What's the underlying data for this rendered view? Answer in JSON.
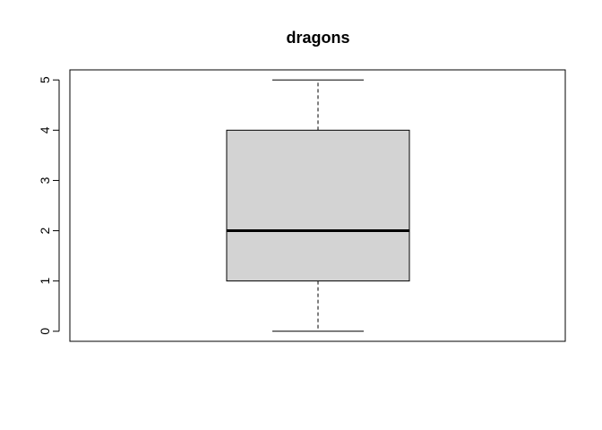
{
  "chart_data": {
    "type": "boxplot",
    "title": "dragons",
    "xlabel": "",
    "ylabel": "",
    "ylim": [
      -0.2,
      5.2
    ],
    "yticks": [
      "0",
      "1",
      "2",
      "3",
      "4",
      "5"
    ],
    "box": {
      "whisker_low": 0,
      "q1": 1,
      "median": 2,
      "q3": 4,
      "whisker_high": 5
    },
    "colors": {
      "box_fill": "#d3d3d3",
      "stroke": "#000000"
    },
    "grid": false,
    "legend": "none"
  }
}
